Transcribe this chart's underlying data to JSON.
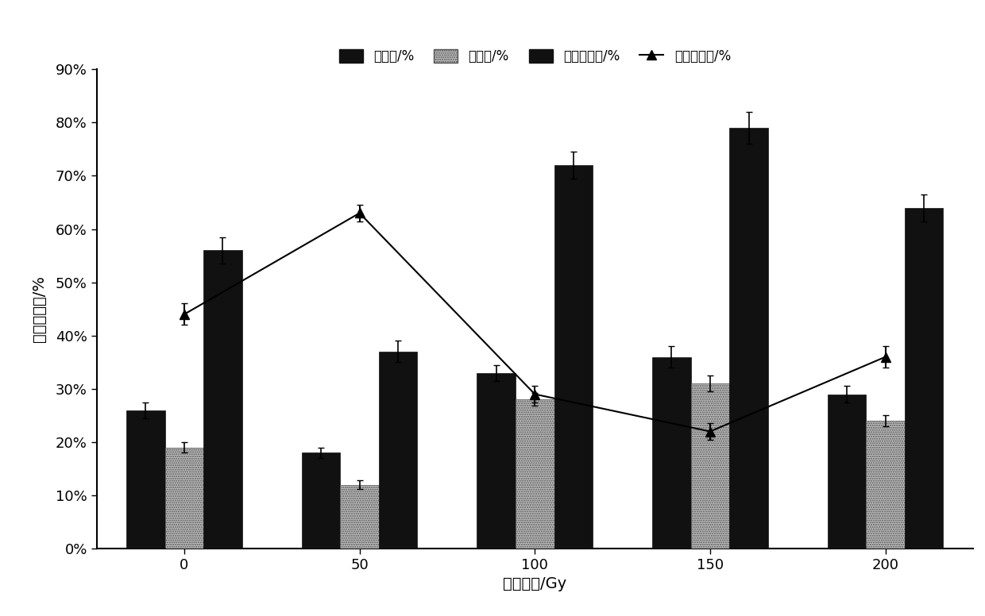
{
  "x_labels": [
    "0",
    "50",
    "100",
    "150",
    "200"
  ],
  "x_positions": [
    1,
    2,
    3,
    4,
    5
  ],
  "germination_rate": [
    26,
    18,
    33,
    36,
    29
  ],
  "germination_rate_err": [
    1.5,
    1.0,
    1.5,
    2.0,
    1.5
  ],
  "germination_vigor": [
    19,
    12,
    28,
    31,
    24
  ],
  "germination_vigor_err": [
    1.0,
    0.8,
    1.2,
    1.5,
    1.0
  ],
  "relative_germination": [
    56,
    37,
    72,
    79,
    64
  ],
  "relative_germination_err": [
    2.5,
    2.0,
    2.5,
    3.0,
    2.5
  ],
  "relative_salt_damage": [
    44,
    63,
    29,
    22,
    36
  ],
  "relative_salt_damage_err": [
    2.0,
    1.5,
    1.5,
    1.5,
    2.0
  ],
  "bar_width": 0.22,
  "xlabel": "辐射剂量/Gy",
  "ylabel": "发芽指标値/%",
  "legend_labels": [
    "发芽率/%",
    "发芽势/%",
    "相对发芽率/%",
    "相对盐害率/%"
  ],
  "yticks": [
    0,
    10,
    20,
    30,
    40,
    50,
    60,
    70,
    80,
    90
  ],
  "yticklabels": [
    "0%",
    "10%",
    "20%",
    "30%",
    "40%",
    "50%",
    "60%",
    "70%",
    "80%",
    "90%"
  ]
}
